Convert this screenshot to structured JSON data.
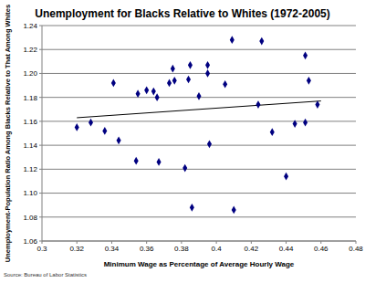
{
  "chart_data": {
    "type": "scatter",
    "title": "Unemployment for Blacks Relative to Whites (1972-2005)",
    "x_label": "Minimum Wage as Percentage of Average Hourly Wage",
    "y_label": "Unemployment-Population Ratio Among Blacks Relative to That Among Whites",
    "source": "Source: Bureau of Labor Statistics",
    "xlim": [
      0.3,
      0.48
    ],
    "xticks": [
      0.3,
      0.32,
      0.34,
      0.36,
      0.38,
      0.4,
      0.42,
      0.44,
      0.46,
      0.48
    ],
    "ylim": [
      1.06,
      1.24
    ],
    "yticks": [
      1.06,
      1.08,
      {
        "value": 1.1,
        "label": "1.10"
      },
      1.12,
      1.14,
      1.16,
      1.18,
      {
        "value": 1.2,
        "label": "1.20"
      },
      1.22,
      1.24
    ],
    "grid": true,
    "series": [
      {
        "type": "scatter",
        "marker": "diamond",
        "color": "#000080",
        "x": [
          0.32,
          0.328,
          0.336,
          0.341,
          0.344,
          0.354,
          0.355,
          0.36,
          0.364,
          0.366,
          0.367,
          0.373,
          0.375,
          0.376,
          0.382,
          0.384,
          0.385,
          0.386,
          0.39,
          0.395,
          0.395,
          0.396,
          0.405,
          0.409,
          0.41,
          0.424,
          0.426,
          0.432,
          0.44,
          0.445,
          0.451,
          0.451,
          0.453,
          0.458
        ],
        "values": [
          1.155,
          1.159,
          1.152,
          1.192,
          1.144,
          1.127,
          1.183,
          1.186,
          1.185,
          1.18,
          1.126,
          1.192,
          1.204,
          1.194,
          1.121,
          1.195,
          1.207,
          1.088,
          1.181,
          1.2,
          1.207,
          1.141,
          1.191,
          1.228,
          1.086,
          1.174,
          1.227,
          1.151,
          1.114,
          1.158,
          1.159,
          1.215,
          1.194,
          1.174
        ]
      },
      {
        "type": "line",
        "line_style": "solid",
        "color": "#000000",
        "x": [
          0.32,
          0.46
        ],
        "values": [
          1.163,
          1.177
        ]
      }
    ]
  }
}
